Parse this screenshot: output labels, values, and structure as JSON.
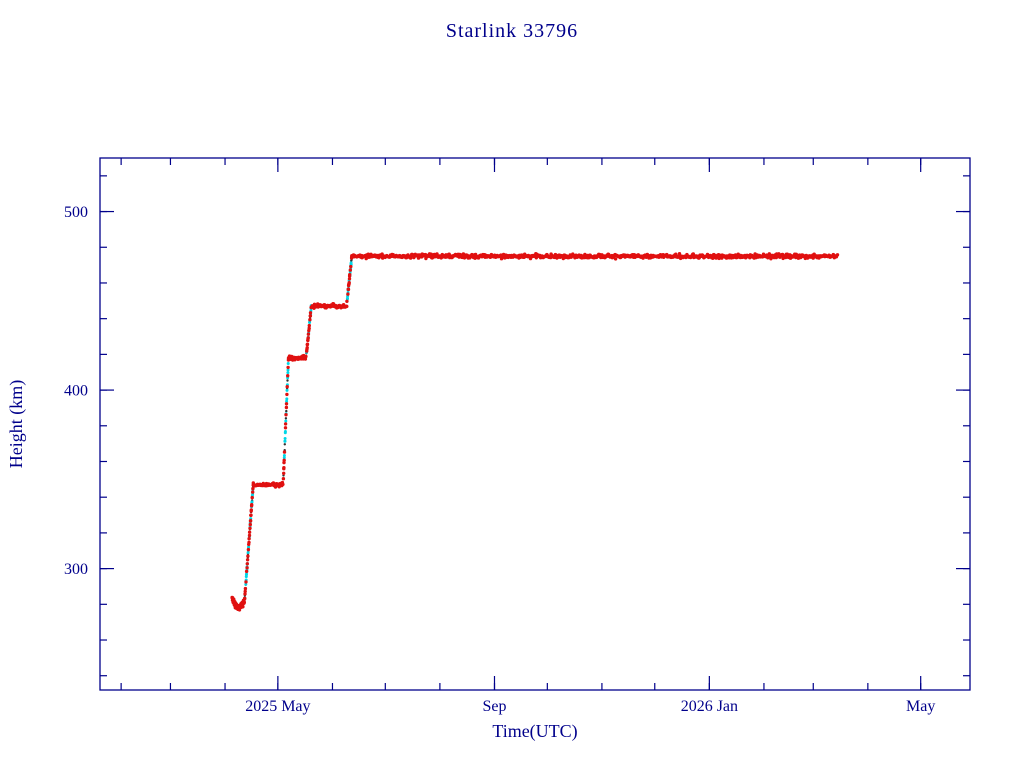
{
  "page": {
    "background": "#ffffff"
  },
  "chart_data": {
    "type": "scatter",
    "title": "Starlink 33796",
    "xlabel": "Time(UTC)",
    "ylabel": "Height (km)",
    "grid": false,
    "legend": "none",
    "xlim": [
      "2025-01-20",
      "2026-05-29"
    ],
    "ylim": [
      232,
      530
    ],
    "x_ticks": [
      {
        "date": "2025-05-01",
        "label": "2025 May"
      },
      {
        "date": "2025-09-01",
        "label": "Sep"
      },
      {
        "date": "2026-01-01",
        "label": "2026 Jan"
      },
      {
        "date": "2026-05-01",
        "label": "May"
      }
    ],
    "x_minor_tick_unit": "month",
    "y_ticks": [
      300,
      400,
      500
    ],
    "y_minor_step": 20,
    "series": [
      {
        "name": "orbit-height",
        "units": "km",
        "breakpoints": [
          [
            "2025-04-05",
            283
          ],
          [
            "2025-04-08",
            278
          ],
          [
            "2025-04-12",
            281
          ],
          [
            "2025-04-17",
            347
          ],
          [
            "2025-05-04",
            347
          ],
          [
            "2025-05-07",
            418
          ],
          [
            "2025-05-17",
            418
          ],
          [
            "2025-05-20",
            447
          ],
          [
            "2025-06-09",
            447
          ],
          [
            "2025-06-12",
            475
          ],
          [
            "2026-03-15",
            475
          ]
        ]
      }
    ],
    "colors": {
      "point": "#e01010",
      "maneuver": "#00d7e6",
      "dark": "#303030",
      "frame": "#00008B",
      "text": "#00008B",
      "background": "#ffffff"
    }
  }
}
